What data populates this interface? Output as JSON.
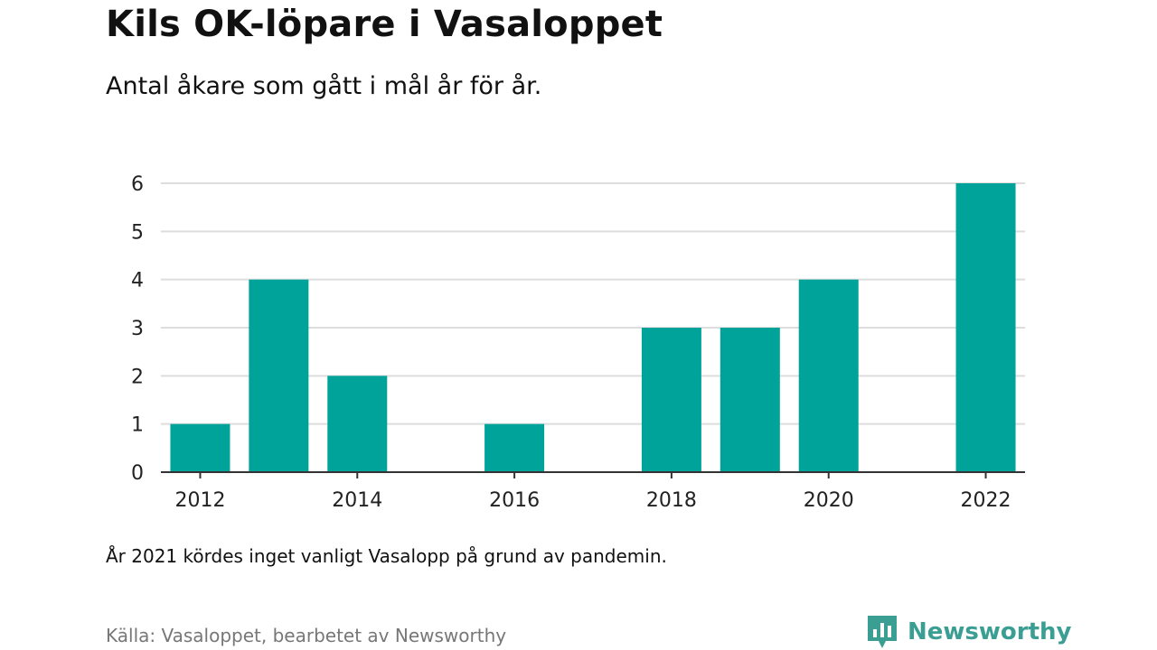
{
  "header": {
    "title": "Kils OK-löpare i Vasaloppet",
    "subtitle": "Antal åkare som gått i mål år för år."
  },
  "footer": {
    "note": "År 2021 kördes inget vanligt Vasalopp på grund av pandemin.",
    "source": "Källa: Vasaloppet, bearbetet av Newsworthy",
    "brand": "Newsworthy",
    "brand_icon": "newsworthy-logo-icon"
  },
  "colors": {
    "bar": "#00a39a",
    "grid": "#dddddd",
    "axis": "#333333",
    "brand": "#3a9e93"
  },
  "chart_data": {
    "type": "bar",
    "title": "Kils OK-löpare i Vasaloppet",
    "subtitle": "Antal åkare som gått i mål år för år.",
    "categories": [
      "2012",
      "2013",
      "2014",
      "2015",
      "2016",
      "2017",
      "2018",
      "2019",
      "2020",
      "2021",
      "2022"
    ],
    "values": [
      1,
      4,
      2,
      0,
      1,
      0,
      3,
      3,
      4,
      0,
      6
    ],
    "x_tick_labels": [
      "2012",
      "2014",
      "2016",
      "2018",
      "2020",
      "2022"
    ],
    "y_tick_labels": [
      "0",
      "1",
      "2",
      "3",
      "4",
      "5",
      "6"
    ],
    "ylim": [
      0,
      6
    ],
    "grid": true,
    "xlabel": "",
    "ylabel": ""
  }
}
